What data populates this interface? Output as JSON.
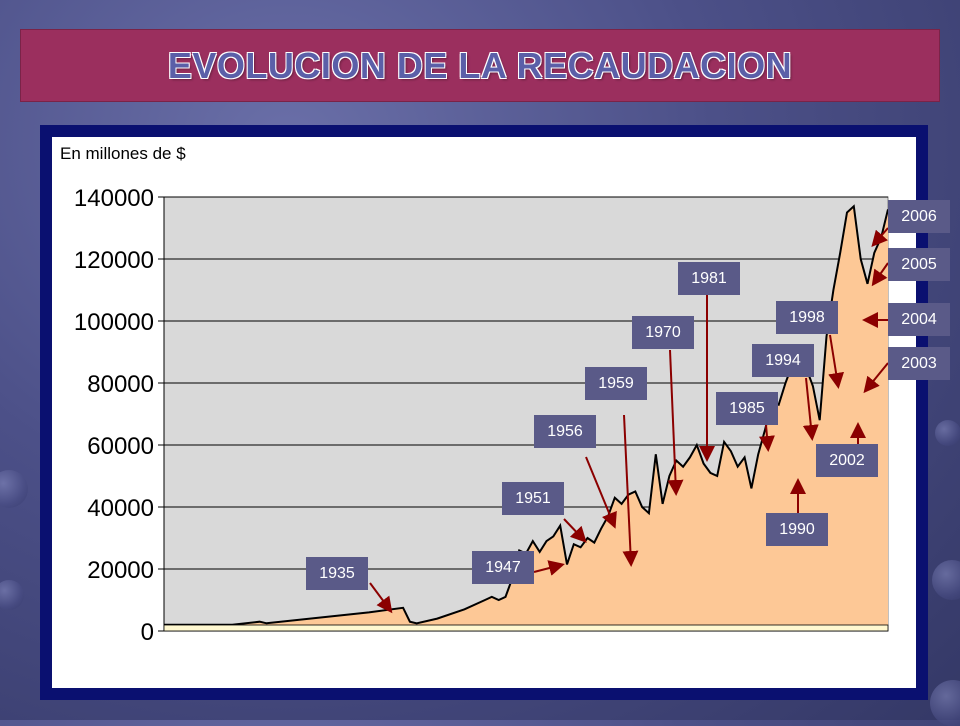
{
  "title": "EVOLUCION DE LA RECAUDACION",
  "colors": {
    "title_bg": "#9b2f5e",
    "title_text": "#5b5fa8",
    "frame": "#0a1070",
    "area_fill": "#fdc896",
    "plot_bg": "#d9d9d9",
    "label_bg": "#5a5a88",
    "arrow": "#8b0000"
  },
  "chart_data": {
    "type": "area",
    "unit_label": "En millones de $",
    "ylim": [
      0,
      140000
    ],
    "yticks": [
      "0",
      "20000",
      "40000",
      "60000",
      "80000",
      "100000",
      "120000",
      "140000"
    ],
    "grid": true,
    "x_range": [
      1900,
      2006
    ],
    "x": [
      1900,
      1910,
      1914,
      1915,
      1930,
      1935,
      1936,
      1937,
      1940,
      1944,
      1947,
      1948,
      1949,
      1950,
      1951,
      1952,
      1953,
      1954,
      1955,
      1956,
      1957,
      1958,
      1959,
      1960,
      1961,
      1962,
      1963,
      1964,
      1965,
      1966,
      1967,
      1968,
      1969,
      1970,
      1971,
      1972,
      1973,
      1974,
      1975,
      1976,
      1977,
      1978,
      1979,
      1980,
      1981,
      1982,
      1983,
      1984,
      1985,
      1986,
      1987,
      1988,
      1989,
      1990,
      1991,
      1992,
      1993,
      1994,
      1995,
      1996,
      1997,
      1998,
      1999,
      2000,
      2001,
      2002,
      2003,
      2004,
      2005,
      2006
    ],
    "values": [
      2000,
      2000,
      3000,
      2500,
      6000,
      7500,
      3000,
      2500,
      4000,
      7000,
      10000,
      11000,
      10000,
      11000,
      17000,
      26000,
      25000,
      29000,
      25500,
      29000,
      30500,
      34000,
      21500,
      28000,
      27000,
      30000,
      28500,
      33000,
      37000,
      43000,
      41000,
      44000,
      45000,
      40000,
      38000,
      57000,
      41000,
      50000,
      55000,
      53000,
      56000,
      60000,
      54000,
      51000,
      50000,
      61000,
      58000,
      53000,
      56000,
      46000,
      57000,
      65000,
      74000,
      73000,
      80000,
      86000,
      84000,
      85000,
      79000,
      68000,
      95000,
      110000,
      122000,
      135000,
      137000,
      120000,
      112000,
      122000,
      127000,
      136000
    ],
    "annotations": [
      {
        "year": "1935"
      },
      {
        "year": "1947"
      },
      {
        "year": "1951"
      },
      {
        "year": "1956"
      },
      {
        "year": "1959"
      },
      {
        "year": "1970"
      },
      {
        "year": "1981"
      },
      {
        "year": "1985"
      },
      {
        "year": "1990"
      },
      {
        "year": "1994"
      },
      {
        "year": "1998"
      },
      {
        "year": "2002"
      },
      {
        "year": "2003"
      },
      {
        "year": "2004"
      },
      {
        "year": "2005"
      },
      {
        "year": "2006"
      }
    ]
  }
}
